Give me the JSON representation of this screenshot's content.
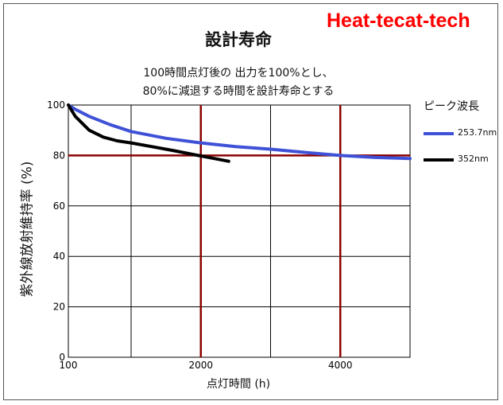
{
  "brand": {
    "text": "Heat-tecat-tech"
  },
  "chart_data": {
    "type": "line",
    "title": "設計寿命",
    "subtitle_lines": [
      "100時間点灯後の 出力を100%とし、",
      "80%に減退する時間を設計寿命とする"
    ],
    "xlabel": "点灯時間 (h)",
    "ylabel": "紫外線放射維持率 (%)",
    "xlim": [
      100,
      5000
    ],
    "ylim": [
      0,
      100
    ],
    "x_ticks": [
      100,
      2000,
      4000
    ],
    "x_ticks_label": [
      "100",
      "2000",
      "4000"
    ],
    "y_ticks": [
      0,
      20,
      40,
      60,
      80,
      100
    ],
    "y_ticks_label": [
      "0",
      "20",
      "40",
      "60",
      "80",
      "100"
    ],
    "grid": true,
    "reference_lines": {
      "x": [
        2000,
        4000
      ],
      "y": [
        80
      ],
      "color": "#8b0000"
    },
    "legend": {
      "title": "ピーク波長",
      "placement": "right"
    },
    "series": [
      {
        "name": "253.7nm",
        "color": "#3f51d6",
        "x": [
          100,
          200,
          400,
          700,
          1000,
          1500,
          2000,
          2500,
          3000,
          3500,
          4000,
          4500,
          5000
        ],
        "values": [
          100,
          98.3,
          95.5,
          92.2,
          89.5,
          86.8,
          85.0,
          83.5,
          82.5,
          81.2,
          80.0,
          79.2,
          78.8
        ]
      },
      {
        "name": "352nm",
        "color": "#000000",
        "x": [
          100,
          200,
          400,
          600,
          800,
          1000,
          1300,
          1600,
          2000,
          2400
        ],
        "values": [
          100,
          95.5,
          90.0,
          87.3,
          85.8,
          85.0,
          83.5,
          82.0,
          79.8,
          77.7
        ]
      }
    ]
  }
}
